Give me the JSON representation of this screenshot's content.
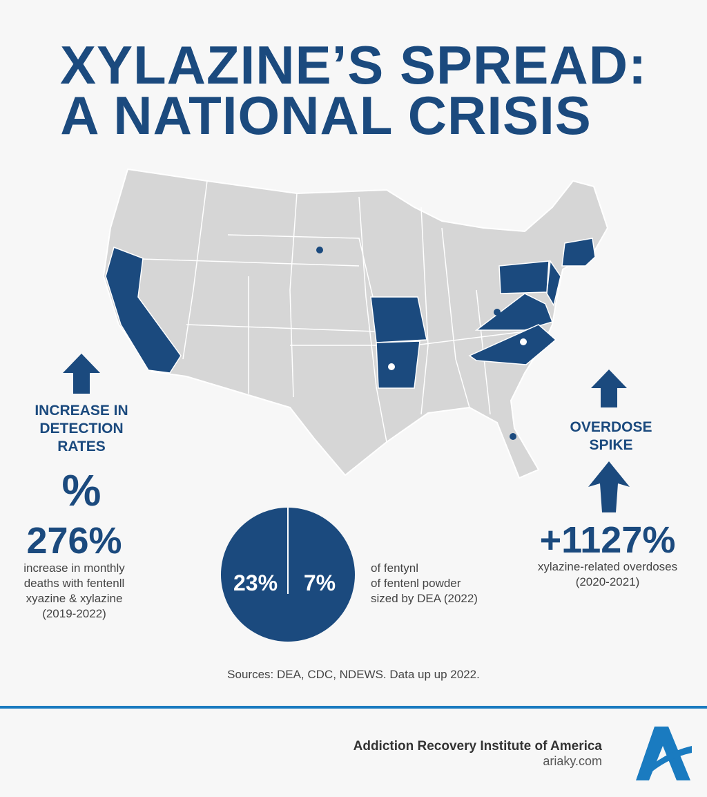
{
  "title": {
    "line1": "XYLAZINE’S SPREAD:",
    "line2": "A NATIONAL CRISIS"
  },
  "left_panel": {
    "label_lines": [
      "INCREASE IN",
      "DETECTION",
      "RATES"
    ],
    "percent_symbol": "%",
    "value": "276%",
    "description_lines": [
      "increase in monthly",
      "deaths with fentenll",
      "xyazine & xylazine",
      "(2019-2022)"
    ],
    "icon": "arrow-up-icon"
  },
  "right_panel": {
    "label_lines": [
      "OVERDOSE",
      "SPIKE"
    ],
    "value": "+1127%",
    "description_lines": [
      "xylazine-related overdoses",
      "(2020-2021)"
    ],
    "icons": [
      "arrow-up-icon",
      "arrow-up-icon"
    ]
  },
  "pie": {
    "labels": [
      "23%",
      "7%"
    ],
    "description_lines": [
      "of fentynl",
      "of fentenl powder",
      "sized by DEA (2022)"
    ]
  },
  "map": {
    "highlighted_states": [
      "California",
      "Missouri",
      "Arkansas",
      "Pennsylvania",
      "New Jersey",
      "Virginia",
      "North Carolina",
      "Massachusetts",
      "Connecticut",
      "Maryland"
    ]
  },
  "sources": "Sources: DEA, CDC, NDEWS. Data up up 2022.",
  "footer": {
    "org": "Addiction Recovery Institute of America",
    "url": "ariaky.com",
    "logo_letter": "A"
  },
  "colors": {
    "primary": "#1b4a7e",
    "accent": "#1a7bc0",
    "map_gray": "#d6d6d6"
  }
}
